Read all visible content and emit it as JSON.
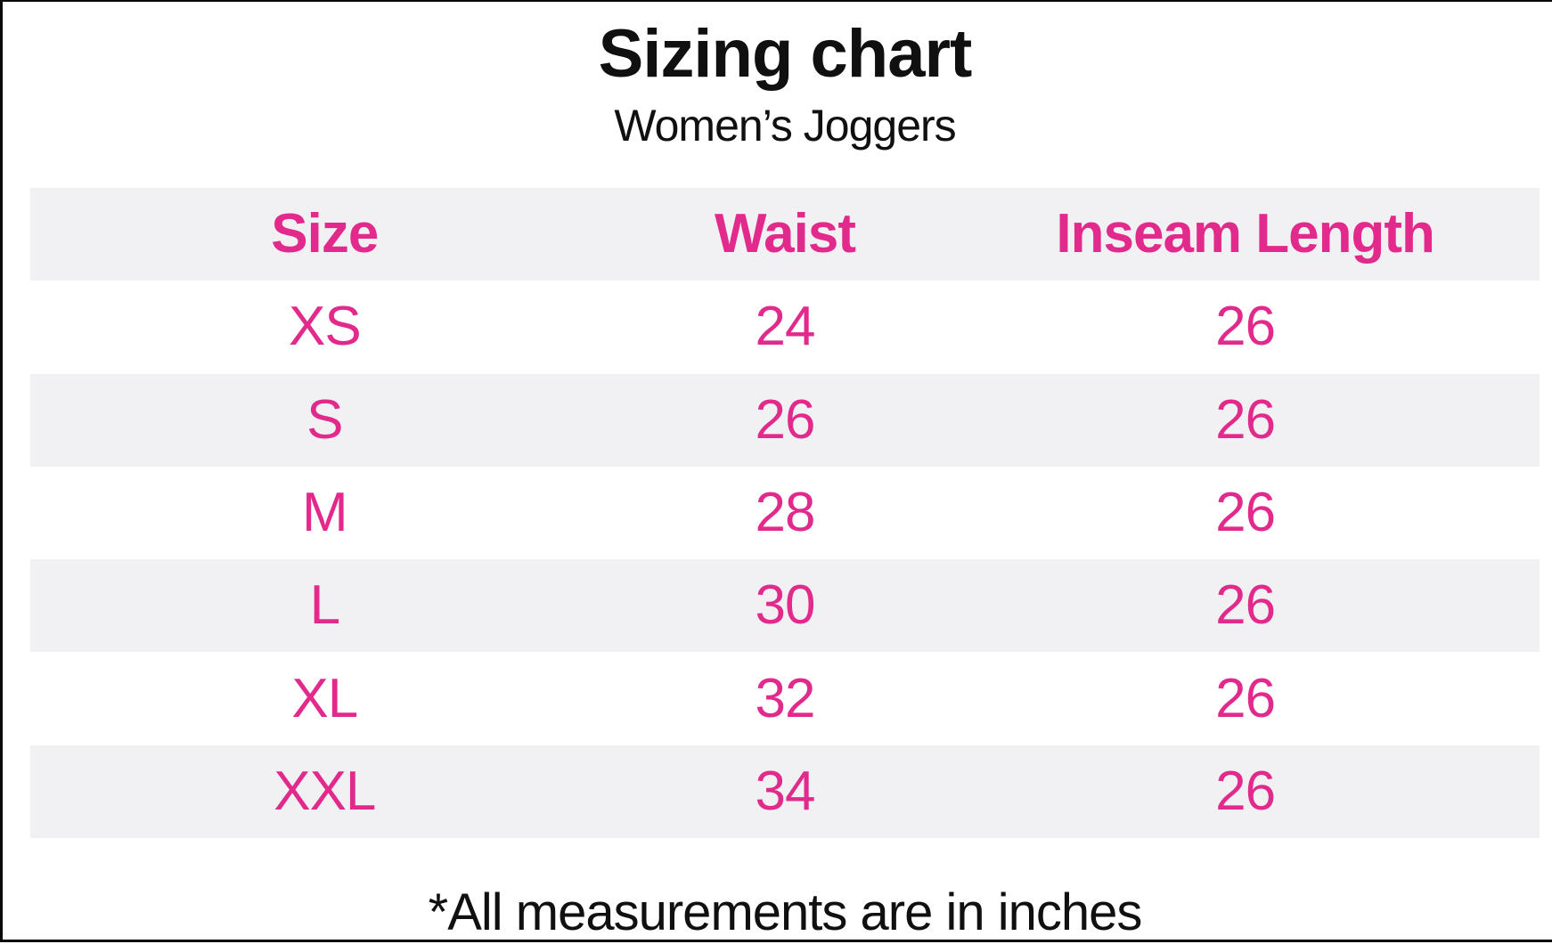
{
  "title": "Sizing chart",
  "subtitle": "Women’s Joggers",
  "footnote": "*All measurements are in inches",
  "colors": {
    "pink": "#e22a8c",
    "row_alt": "#f1f1f3",
    "ink": "#101010",
    "frame_border": "#0a0a0a"
  },
  "table": {
    "headers": [
      "Size",
      "Waist",
      "Inseam Length"
    ],
    "rows": [
      [
        "XS",
        "24",
        "26"
      ],
      [
        "S",
        "26",
        "26"
      ],
      [
        "M",
        "28",
        "26"
      ],
      [
        "L",
        "30",
        "26"
      ],
      [
        "XL",
        "32",
        "26"
      ],
      [
        "XXL",
        "34",
        "26"
      ]
    ]
  },
  "chart_data": {
    "type": "table",
    "title": "Sizing chart",
    "subtitle": "Women’s Joggers",
    "columns": [
      "Size",
      "Waist",
      "Inseam Length"
    ],
    "rows": [
      [
        "XS",
        24,
        26
      ],
      [
        "S",
        26,
        26
      ],
      [
        "M",
        28,
        26
      ],
      [
        "L",
        30,
        26
      ],
      [
        "XL",
        32,
        26
      ],
      [
        "XXL",
        34,
        26
      ]
    ],
    "units": "inches",
    "note": "*All measurements are in inches",
    "layout_hints": {
      "striped_rows": true,
      "header_color": "#e22a8c",
      "stripe_color": "#f1f1f3"
    }
  }
}
